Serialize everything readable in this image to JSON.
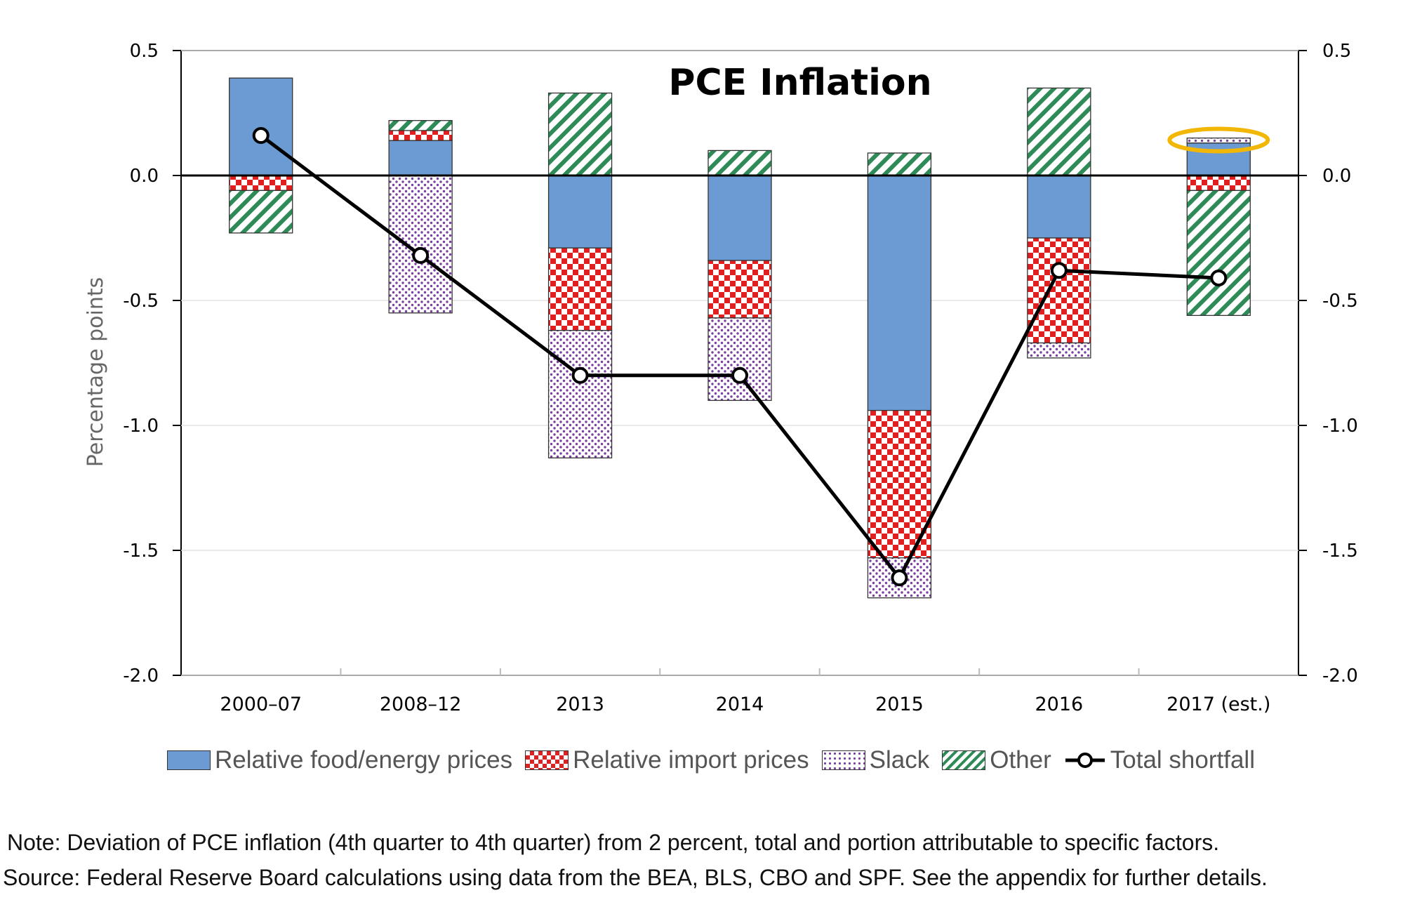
{
  "chart_data": {
    "type": "bar",
    "title": "PCE Inflation",
    "ylabel": "Percentage points",
    "ylim": [
      -2.0,
      0.5
    ],
    "yticks": [
      "0.5",
      "0.0",
      "-0.5",
      "-1.0",
      "-1.5",
      "-2.0"
    ],
    "ytick_values": [
      0.5,
      0.0,
      -0.5,
      -1.0,
      -1.5,
      -2.0
    ],
    "categories": [
      "2000–07",
      "2008–12",
      "2013",
      "2014",
      "2015",
      "2016",
      "2017 (est.)"
    ],
    "series": [
      {
        "name": "Relative food/energy prices",
        "values": [
          0.39,
          0.14,
          -0.29,
          -0.34,
          -0.94,
          -0.25,
          0.13
        ]
      },
      {
        "name": "Relative import prices",
        "values": [
          -0.06,
          0.04,
          -0.33,
          -0.23,
          -0.59,
          -0.42,
          -0.06
        ]
      },
      {
        "name": "Slack",
        "values": [
          0.0,
          -0.55,
          -0.51,
          -0.33,
          -0.16,
          -0.06,
          0.02
        ]
      },
      {
        "name": "Other",
        "values": [
          -0.17,
          0.04,
          0.33,
          0.1,
          0.09,
          0.35,
          -0.5
        ]
      },
      {
        "name": "Total shortfall",
        "type": "line",
        "values": [
          0.16,
          -0.32,
          -0.8,
          -0.8,
          -1.61,
          -0.38,
          -0.41
        ]
      }
    ],
    "grid": true,
    "legend_position": "bottom",
    "annotation": "highlight ellipse around 2017 (est.) positive bar",
    "colors": {
      "food_energy": "#6b9bd2",
      "import": "#e02020",
      "slack": "#7a3fa0",
      "other": "#2e8b57",
      "line": "#000000",
      "highlight": "#f2b705"
    }
  },
  "legend": {
    "food_energy": "Relative food/energy prices",
    "import": "Relative import prices",
    "slack": "Slack",
    "other": "Other",
    "total": "Total shortfall"
  },
  "notes": {
    "note": "Note: Deviation of PCE inflation (4th quarter to 4th quarter) from 2 percent, total and portion attributable to specific factors.",
    "source": "Source:  Federal Reserve Board calculations using data from the BEA, BLS, CBO and SPF.  See the appendix for further details."
  }
}
